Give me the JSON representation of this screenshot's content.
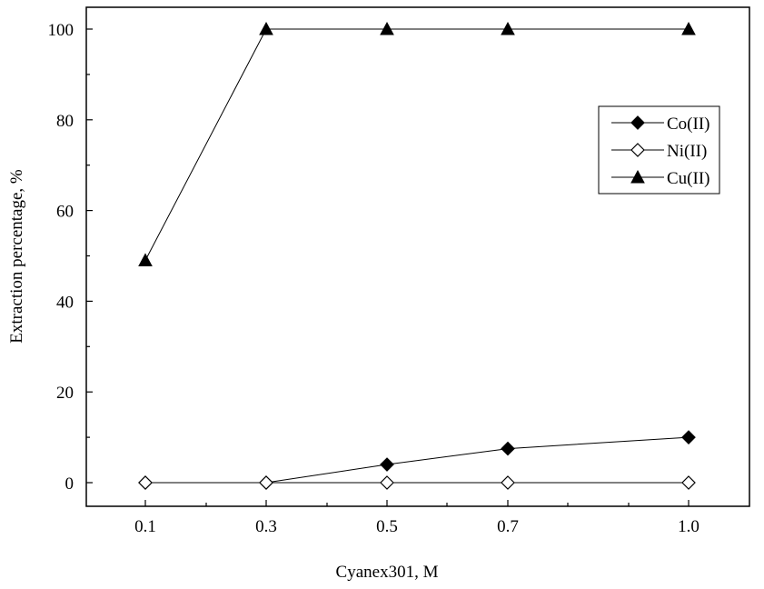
{
  "chart_data": {
    "type": "line",
    "title": "",
    "xlabel": "Cyanex301, M",
    "ylabel": "Extraction percentage, %",
    "x": [
      0.1,
      0.3,
      0.5,
      0.7,
      1.0
    ],
    "x_tick_labels": [
      "0.1",
      "0.3",
      "0.5",
      "0.7",
      "1.0"
    ],
    "y_ticks": [
      0,
      20,
      40,
      60,
      80,
      100
    ],
    "y_tick_labels": [
      "0",
      "20",
      "40",
      "60",
      "80",
      "100"
    ],
    "ylim": [
      -5,
      105
    ],
    "legend_position": "right",
    "series": [
      {
        "name": "Co(II)",
        "marker": "diamond-filled",
        "values": [
          0,
          0,
          4,
          7.5,
          10
        ]
      },
      {
        "name": "Ni(II)",
        "marker": "diamond-open",
        "values": [
          0,
          0,
          0,
          0,
          0
        ]
      },
      {
        "name": "Cu(II)",
        "marker": "triangle-filled",
        "values": [
          49,
          100,
          100,
          100,
          100
        ]
      }
    ]
  }
}
